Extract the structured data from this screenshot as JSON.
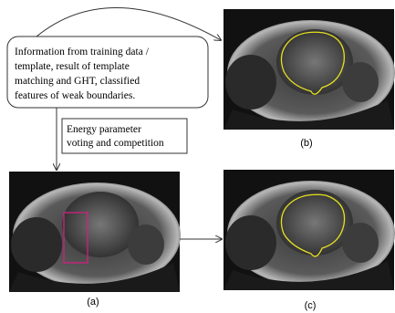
{
  "info_box": {
    "lines": [
      "Information from training data /",
      "template, result of template",
      "matching and GHT, classified",
      "features of weak boundaries."
    ]
  },
  "energy_box": {
    "lines": [
      "Energy parameter",
      "voting and competition"
    ]
  },
  "labels": {
    "a": "(a)",
    "b": "(b)",
    "c": "(c)"
  }
}
